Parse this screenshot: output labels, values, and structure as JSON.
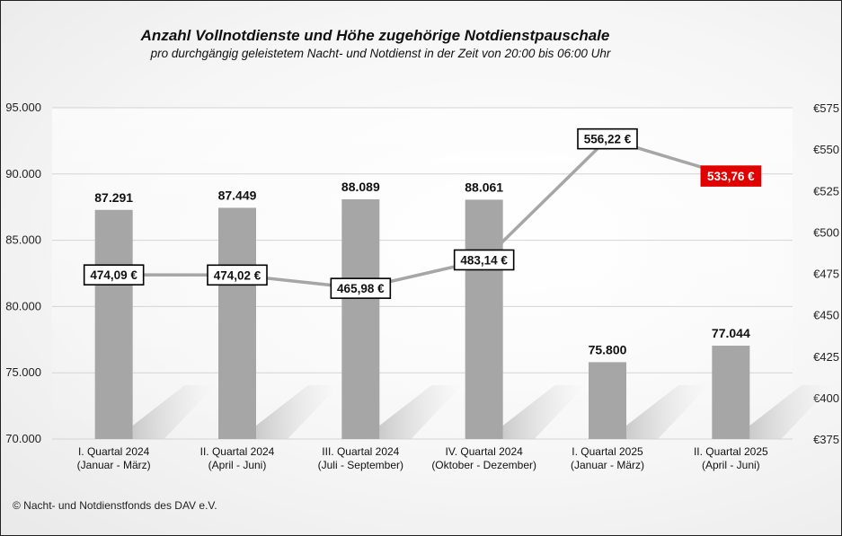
{
  "title": "Anzahl Vollnotdienste  und Höhe zugehörige Notdienstpauschale",
  "subtitle": "pro durchgängig geleistetem Nacht- und Notdienst in der Zeit von 20:00 bis 06:00 Uhr",
  "footer": "© Nacht- und Notdienstfonds  des DAV e.V.",
  "colors": {
    "bar": "#a6a6a6",
    "line": "#a6a6a6",
    "label_box_border": "#000000",
    "highlight_box": "#e00000",
    "highlight_text": "#ffffff"
  },
  "chart_data": {
    "type": "bar",
    "categories": [
      [
        "I. Quartal 2024",
        "(Januar - März)"
      ],
      [
        "II. Quartal 2024",
        "(April - Juni)"
      ],
      [
        "III. Quartal 2024",
        "(Juli - September)"
      ],
      [
        "IV. Quartal 2024",
        "(Oktober - Dezember)"
      ],
      [
        "I. Quartal 2025",
        "(Januar - März)"
      ],
      [
        "II. Quartal 2025",
        "(April - Juni)"
      ]
    ],
    "series": [
      {
        "type": "bar",
        "axis": "left",
        "values": [
          87291,
          87449,
          88089,
          88061,
          75800,
          77044
        ],
        "labels": [
          "87.291",
          "87.449",
          "88.089",
          "88.061",
          "75.800",
          "77.044"
        ]
      },
      {
        "type": "line",
        "axis": "right",
        "values": [
          474.09,
          474.02,
          465.98,
          483.14,
          556.22,
          533.76
        ],
        "labels": [
          "474,09 €",
          "474,02 €",
          "465,98 €",
          "483,14 €",
          "556,22 €",
          "533,76 €"
        ],
        "highlight_index": 5
      }
    ],
    "y_left": {
      "ylim": [
        70000,
        95000
      ],
      "ticks": [
        70000,
        75000,
        80000,
        85000,
        90000,
        95000
      ],
      "tick_labels": [
        "70.000",
        "75.000",
        "80.000",
        "85.000",
        "90.000",
        "95.000"
      ]
    },
    "y_right": {
      "ylim": [
        375,
        575
      ],
      "ticks": [
        375,
        400,
        425,
        450,
        475,
        500,
        525,
        550,
        575
      ],
      "tick_labels": [
        "€375",
        "€400",
        "€425",
        "€450",
        "€475",
        "€500",
        "€525",
        "€550",
        "€575"
      ]
    },
    "grid": "horizontal",
    "legend": "none"
  }
}
